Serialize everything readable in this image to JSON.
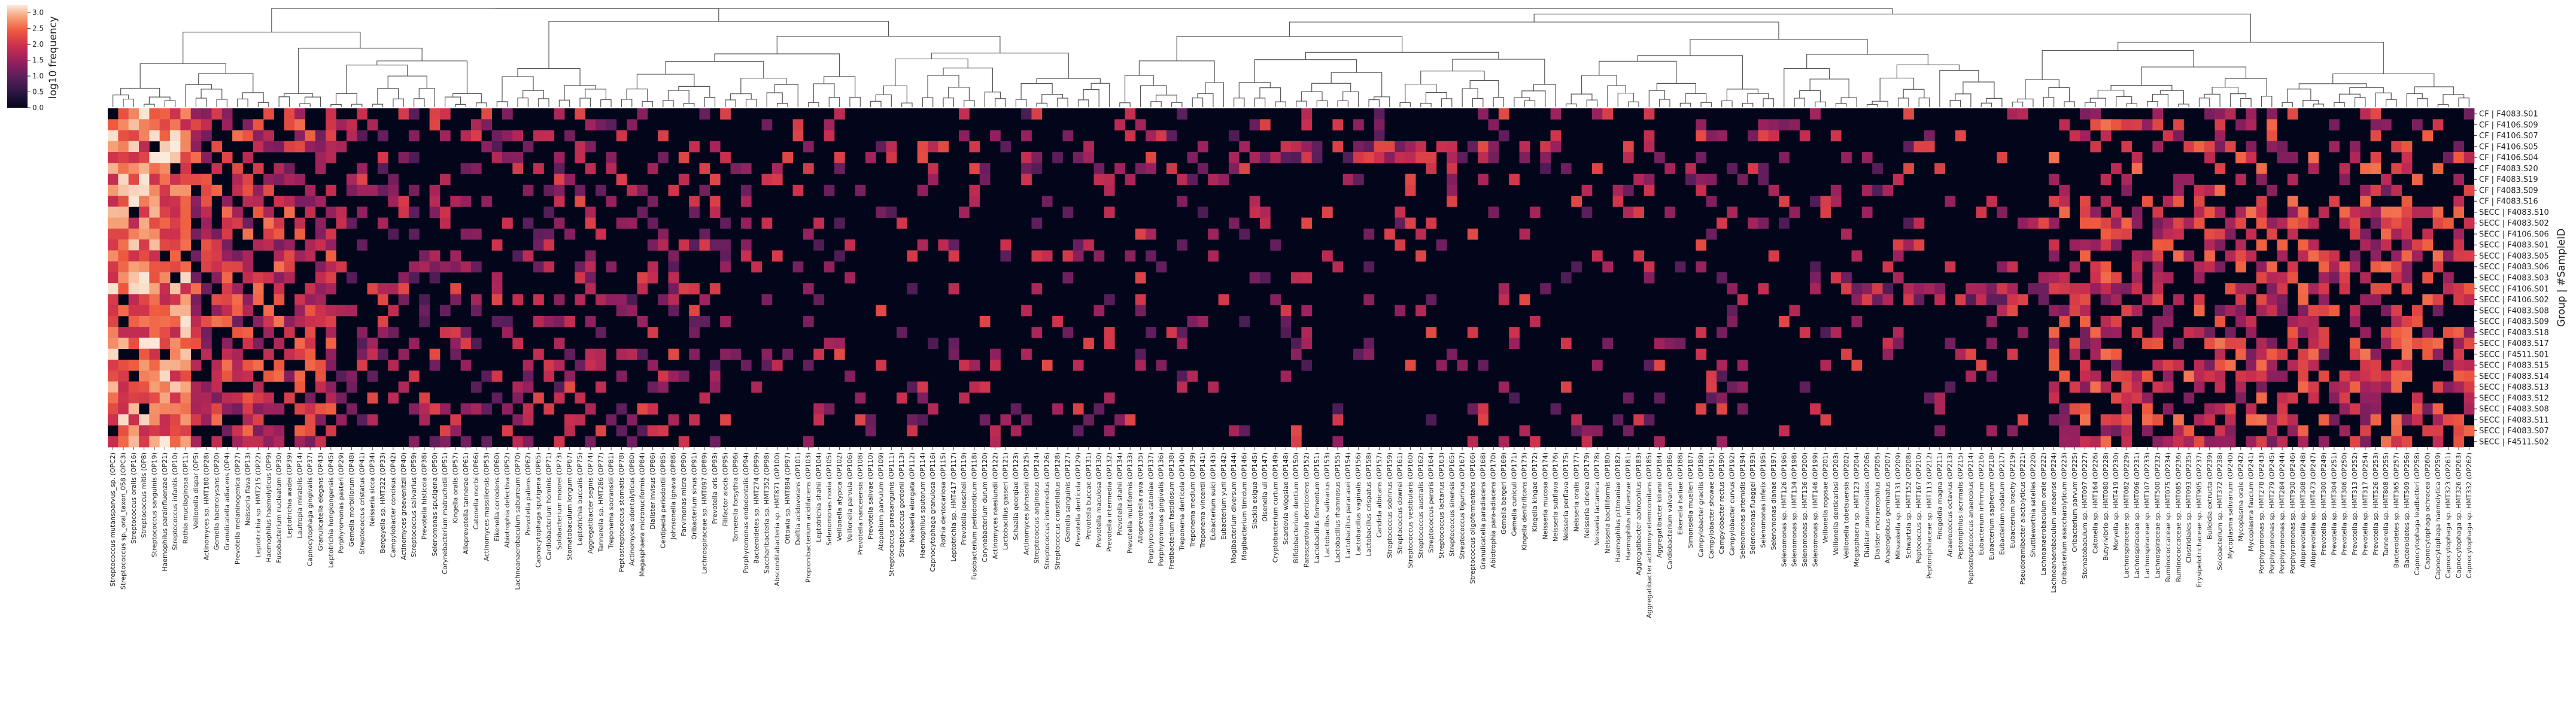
{
  "chart_data": {
    "type": "heatmap",
    "title": "",
    "ylabel": "Group | #SampleID",
    "colorbar": {
      "label": "log10 frequency",
      "ticks": [
        "0.0",
        "0.5",
        "1.0",
        "1.5",
        "2.0",
        "2.5",
        "3.0"
      ],
      "range": [
        0,
        3.25
      ]
    },
    "rows": [
      "CF | F4083.S01",
      "CF | F4106.S09",
      "CF | F4106.S07",
      "CF | F4106.S05",
      "CF | F4106.S04",
      "CF | F4083.S20",
      "CF | F4083.S19",
      "CF | F4083.S09",
      "CF | F4083.S16",
      "SECC | F4083.S10",
      "SECC | F4083.S02",
      "SECC | F4106.S06",
      "SECC | F4083.S01",
      "SECC | F4083.S05",
      "SECC | F4083.S06",
      "SECC | F4083.S03",
      "SECC | F4106.S01",
      "SECC | F4106.S02",
      "SECC | F4083.S08",
      "SECC | F4083.S09",
      "SECC | F4083.S18",
      "SECC | F4083.S17",
      "SECC | F4511.S01",
      "SECC | F4083.S15",
      "SECC | F4083.S14",
      "SECC | F4083.S13",
      "SECC | F4083.S12",
      "SECC | F4083.S08",
      "SECC | F4083.S11",
      "SECC | F4083.S07",
      "SECC | F4511.S02"
    ],
    "columns": [
      "Streptococcus mutansparvus_sp. (OPC2)",
      "Streptococcus sp._oral_taxon_058 (OPC3)",
      "Streptococcus oralis (OP16)",
      "Streptococcus mitis (OP8)",
      "Streptococcus sanguinis (OP19)",
      "Haemophilus parainfluenzae (OP21)",
      "Streptococcus infantis (OP10)",
      "Rothia mucilaginosa (OP11)",
      "Veillonella dispar (OP5)",
      "Actinomyces sp. HMT180 (OP28)",
      "Gemella haemolysans (OP20)",
      "Granulicatella adiacens (OP4)",
      "Prevotella melaninogenica (OP27)",
      "Neisseria flava (OP13)",
      "Leptotrichia sp. HMT215 (OP22)",
      "Haemophilus haemolyticus (OP9)",
      "Fusobacterium nucleatum (OP30)",
      "Leptotrichia wadei (OP39)",
      "Lautropia mirabilis (OP14)",
      "Capnocytophaga gingivalis (OP37)",
      "Granulicatella elegans (OP43)",
      "Leptotrichia hongkongensis (OP45)",
      "Porphyromonas pasteri (OP29)",
      "Gemella morbillorum (OP48)",
      "Streptococcus cristatus (OP41)",
      "Neisseria sicca (OP34)",
      "Bergeyella sp. HMT322 (OP33)",
      "Campylobacter concisus (OP42)",
      "Actinomyces graevenitzii (OP40)",
      "Streptococcus salivarius (OP59)",
      "Prevotella histicola (OP38)",
      "Selenomonas sputigena (OP50)",
      "Corynebacterium matruchotii (OP51)",
      "Kingella oralis (OP57)",
      "Alloprevotella tannerae (OP61)",
      "Catonella morbi (OP66)",
      "Actinomyces massiliensis (OP53)",
      "Eikenella corrodens (OP60)",
      "Abiotrophia defectiva (OP52)",
      "Lachnoanaerobaculum saburreum (OP70)",
      "Prevotella pallens (OP62)",
      "Capnocytophaga sputigena (OP65)",
      "Cardiobacterium hominis (OP71)",
      "Solobacterium moorei (OP73)",
      "Stomatobaculum longum (OP67)",
      "Leptotrichia buccalis (OP75)",
      "Aggregatibacter segnis (OP74)",
      "Tannerella sp. HMT286 (OP77)",
      "Treponema socranskii (OP81)",
      "Peptostreptococcus stomatis (OP78)",
      "Actinomyces odontolyticus (OP80)",
      "Megasphaera micronuciformis (OP84)",
      "Dialister invisus (OP86)",
      "Centipeda periodontii (OP85)",
      "Johnsonella ignava (OP88)",
      "Parvimonas micra (OP90)",
      "Oribacterium sinus (OP91)",
      "Lachnospiraceae sp. HMT097 (OP89)",
      "Prevotella oris (OP93)",
      "Filifactor alocis (OP95)",
      "Tannerella forsythia (OP96)",
      "Porphyromonas endodontalis (OP94)",
      "Bacteroidetes sp. HMT274 (OP99)",
      "Saccharibacteria sp. HMT352 (OP98)",
      "Absconditabacteria sp. HMT871 (OP100)",
      "Ottowia sp. HMT894 (OP97)",
      "Delftia acidovorans (OP101)",
      "Propionibacterium acidifaciens (OP103)",
      "Leptotrichia shahii (OP104)",
      "Selenomonas noxia (OP105)",
      "Veillonella atypica (OP102)",
      "Veillonella parvula (OP106)",
      "Prevotella nanceiensis (OP108)",
      "Prevotella salivae (OP110)",
      "Atopobium parvulum (OP109)",
      "Streptococcus parasanguinis (OP111)",
      "Streptococcus gordonii (OP113)",
      "Neisseria elongata (OP112)",
      "Haemophilus sputorum (OP114)",
      "Capnocytophaga granulosa (OP116)",
      "Rothia dentocariosa (OP115)",
      "Leptotrichia sp. HMT417 (OP117)",
      "Prevotella loescheii (OP119)",
      "Fusobacterium periodonticum (OP118)",
      "Corynebacterium durum (OP120)",
      "Actinomyces naeslundii (OP122)",
      "Lactobacillus gasseri (OP121)",
      "Schaalia georgiae (OP123)",
      "Actinomyces johnsonii (OP125)",
      "Streptococcus anginosus (OP124)",
      "Streptococcus intermedius (OP126)",
      "Streptococcus constellatus (OP128)",
      "Gemella sanguinis (OP127)",
      "Prevotella denticola (OP129)",
      "Prevotella buccae (OP131)",
      "Prevotella maculosa (OP130)",
      "Prevotella intermedia (OP132)",
      "Prevotella shahii (OP134)",
      "Prevotella multiformis (OP133)",
      "Alloprevotella rava (OP135)",
      "Porphyromonas catoniae (OP137)",
      "Porphyromonas gingivalis (OP136)",
      "Fretibacterium fastidiosum (OP138)",
      "Treponema denticola (OP140)",
      "Treponema medium (OP139)",
      "Treponema vincentii (OP141)",
      "Eubacterium sulci (OP143)",
      "Eubacterium yurii (OP142)",
      "Mogibacterium diversum (OP144)",
      "Mogibacterium timidum (OP146)",
      "Slackia exigua (OP145)",
      "Olsenella uli (OP147)",
      "Cryptobacterium curtum (OP149)",
      "Scardovia wiggsiae (OP148)",
      "Bifidobacterium dentium (OP150)",
      "Parascardovia denticolens (OP152)",
      "Lactobacillus fermentum (OP151)",
      "Lactobacillus salivarius (OP153)",
      "Lactobacillus rhamnosus (OP155)",
      "Lactobacillus paracasei (OP154)",
      "Lactobacillus vaginalis (OP156)",
      "Lactobacillus crispatus (OP158)",
      "Candida albicans (OP157)",
      "Streptococcus sobrinus (OP159)",
      "Streptococcus downei (OP161)",
      "Streptococcus vestibularis (OP160)",
      "Streptococcus australis (OP162)",
      "Streptococcus peroris (OP164)",
      "Streptococcus lactarius (OP163)",
      "Streptococcus sinensis (OP165)",
      "Streptococcus tigurinus (OP167)",
      "Streptococcus oligofermentans (OP166)",
      "Granulicatella paradiacens (OP168)",
      "Abiotrophia para-adiacens (OP170)",
      "Gemella bergeri (OP169)",
      "Gemella cuniculi (OP171)",
      "Kingella denitrificans (OP173)",
      "Kingella kingae (OP172)",
      "Neisseria mucosa (OP174)",
      "Neisseria subflava (OP176)",
      "Neisseria perflava (OP175)",
      "Neisseria oralis (OP177)",
      "Neisseria cinerea (OP179)",
      "Neisseria lactamica (OP178)",
      "Neisseria bacilliformis (OP180)",
      "Haemophilus pittmaniae (OP182)",
      "Haemophilus influenzae (OP181)",
      "Aggregatibacter aphrophilus (OP183)",
      "Aggregatibacter actinomycetemcomitans (OP185)",
      "Aggregatibacter kilianii (OP184)",
      "Cardiobacterium valvarum (OP186)",
      "Eikenella halliae (OP188)",
      "Simonsiella muelleri (OP187)",
      "Campylobacter gracilis (OP189)",
      "Campylobacter showae (OP191)",
      "Campylobacter rectus (OP190)",
      "Campylobacter curvus (OP192)",
      "Selenomonas artemidis (OP194)",
      "Selenomonas flueggei (OP193)",
      "Selenomonas infelix (OP195)",
      "Selenomonas dianae (OP197)",
      "Selenomonas sp. HMT126 (OP196)",
      "Selenomonas sp. HMT134 (OP198)",
      "Selenomonas sp. HMT136 (OP200)",
      "Selenomonas sp. HMT146 (OP199)",
      "Veillonella rogosae (OP201)",
      "Veillonella denticariosi (OP203)",
      "Veillonella tobetsuensis (OP202)",
      "Megasphaera sp. HMT123 (OP204)",
      "Dialister pneumosintes (OP206)",
      "Dialister micraerophilus (OP205)",
      "Anaeroglobus geminatus (OP207)",
      "Mitsuokella sp. HMT131 (OP209)",
      "Schwartzia sp. HMT152 (OP208)",
      "Peptococcus sp. HMT167 (OP210)",
      "Peptoniphilaceae sp. HMT113 (OP212)",
      "Finegoldia magna (OP211)",
      "Anaerococcus octavius (OP213)",
      "Peptoniphilus lacrimalis (OP215)",
      "Peptostreptococcus anaerobius (OP214)",
      "Eubacterium infirmum (OP216)",
      "Eubacterium saphenum (OP218)",
      "Eubacterium nodatum (OP217)",
      "Eubacterium brachy (OP219)",
      "Pseudoramibacter alactolyticus (OP221)",
      "Shuttleworthia satelles (OP220)",
      "Lachnoanaerobaculum orale (OP222)",
      "Lachnoanaerobaculum umeaense (OP224)",
      "Oribacterium asaccharolyticum (OP223)",
      "Oribacterium parvum (OP225)",
      "Stomatobaculum sp. HMT097 (OP227)",
      "Catonella sp. HMT164 (OP226)",
      "Butyrivibrio sp. HMT080 (OP228)",
      "Moryella sp. HMT419 (OP230)",
      "Lachnospiraceae sp. HMT082 (OP229)",
      "Lachnospiraceae sp. HMT096 (OP231)",
      "Lachnospiraceae sp. HMT107 (OP233)",
      "Lachnospiraceae sp. HMT500 (OP232)",
      "Ruminococcaceae sp. HMT075 (OP234)",
      "Ruminococcaceae sp. HMT085 (OP236)",
      "Clostridiales sp. HMT093 (OP235)",
      "Erysipelotrichaceae sp. HMT905 (OP237)",
      "Bulleidia extructa (OP239)",
      "Solobacterium sp. HMT372 (OP238)",
      "Mycoplasma salivarium (OP240)",
      "Mycoplasma orale (OP242)",
      "Mycoplasma faucium (OP241)",
      "Porphyromonas sp. HMT278 (OP243)",
      "Porphyromonas sp. HMT279 (OP245)",
      "Porphyromonas sp. HMT284 (OP244)",
      "Porphyromonas sp. HMT930 (OP246)",
      "Alloprevotella sp. HMT308 (OP248)",
      "Alloprevotella sp. HMT473 (OP247)",
      "Prevotella sp. HMT300 (OP249)",
      "Prevotella sp. HMT304 (OP251)",
      "Prevotella sp. HMT306 (OP250)",
      "Prevotella sp. HMT313 (OP252)",
      "Prevotella sp. HMT317 (OP254)",
      "Prevotella sp. HMT526 (OP253)",
      "Tannerella sp. HMT808 (OP255)",
      "Bacteroidetes sp. HMT365 (OP257)",
      "Bacteroidetes sp. HMT509 (OP256)",
      "Capnocytophaga leadbetteri (OP258)",
      "Capnocytophaga ochracea (OP260)",
      "Capnocytophaga haemolytica (OP259)",
      "Capnocytophaga sp. HMT323 (OP261)",
      "Capnocytophaga sp. HMT326 (OP263)",
      "Capnocytophaga sp. HMT332 (OP262)"
    ],
    "rows_count": 31,
    "columns_count": 244
  }
}
